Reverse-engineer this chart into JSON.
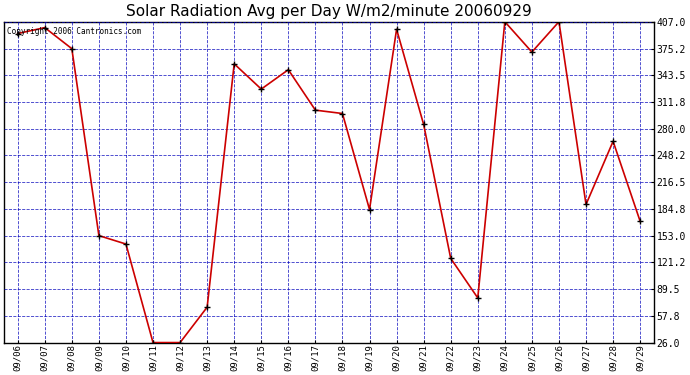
{
  "title": "Solar Radiation Avg per Day W/m2/minute 20060929",
  "copyright_text": "Copyright 2006 Cantronics.com",
  "dates": [
    "09/06",
    "09/07",
    "09/08",
    "09/09",
    "09/10",
    "09/11",
    "09/12",
    "09/13",
    "09/14",
    "09/15",
    "09/16",
    "09/17",
    "09/18",
    "09/19",
    "09/20",
    "09/21",
    "09/22",
    "09/23",
    "09/24",
    "09/25",
    "09/26",
    "09/27",
    "09/28",
    "09/29"
  ],
  "values": [
    393,
    400,
    375,
    153,
    143,
    26,
    26,
    68,
    357,
    327,
    350,
    302,
    298,
    184,
    398,
    285,
    126,
    79,
    407,
    371,
    407,
    190,
    265,
    170
  ],
  "line_color": "#cc0000",
  "marker_color": "#000000",
  "bg_color": "#ffffff",
  "plot_bg_color": "#ffffff",
  "grid_color": "#0000bb",
  "title_fontsize": 11,
  "yticks": [
    26.0,
    57.8,
    89.5,
    121.2,
    153.0,
    184.8,
    216.5,
    248.2,
    280.0,
    311.8,
    343.5,
    375.2,
    407.0
  ],
  "ylim": [
    26.0,
    407.0
  ],
  "text_color": "#000000",
  "border_color": "#000000"
}
